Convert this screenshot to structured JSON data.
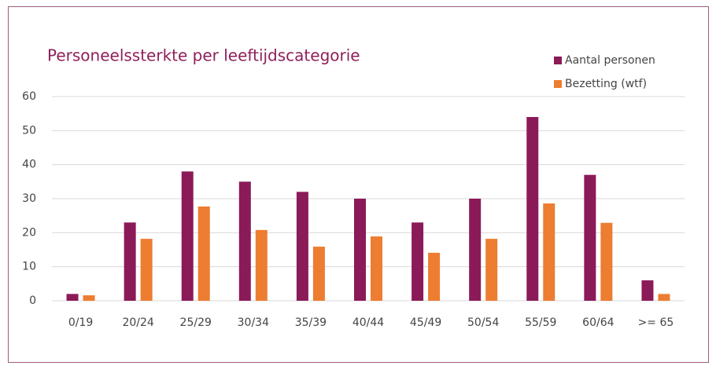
{
  "chart_data": {
    "type": "bar",
    "title": "Personeelssterkte per leeftijdscategorie",
    "categories": [
      "0/19",
      "20/24",
      "25/29",
      "30/34",
      "35/39",
      "40/44",
      "45/49",
      "50/54",
      "55/59",
      "60/64",
      ">= 65"
    ],
    "series": [
      {
        "name": "Aantal personen",
        "color": "#8b1a59",
        "values": [
          2,
          23,
          38,
          35,
          32,
          30,
          23,
          30,
          54,
          37,
          6
        ]
      },
      {
        "name": "Bezetting (wtf)",
        "color": "#ed7d31",
        "values": [
          1.6,
          18.2,
          27.7,
          20.8,
          15.9,
          18.9,
          14.1,
          18.2,
          28.6,
          22.9,
          2
        ]
      }
    ],
    "ylim": [
      0,
      60
    ],
    "yticks": [
      0,
      10,
      20,
      30,
      40,
      50,
      60
    ],
    "grid": true,
    "legend": "top-right"
  }
}
